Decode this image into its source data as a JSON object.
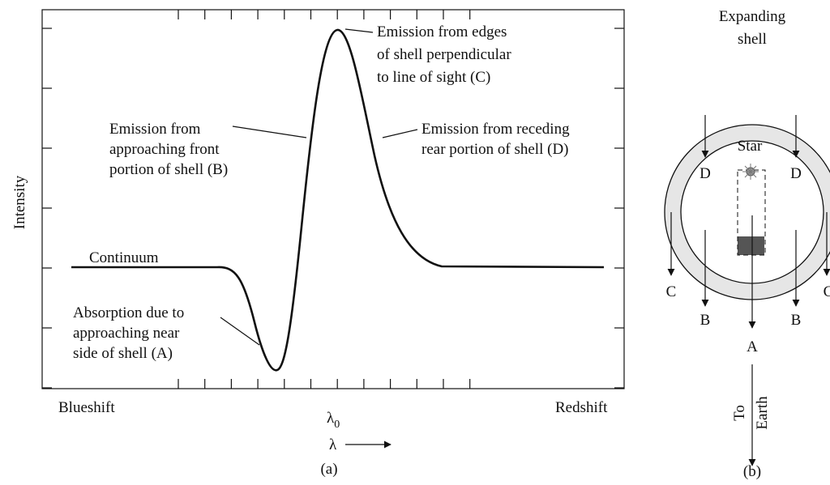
{
  "panel_a": {
    "y_axis_label": "Intensity",
    "continuum": "Continuum",
    "absorption_a": [
      "Absorption due to",
      "approaching near",
      "side of shell (A)"
    ],
    "emission_b": [
      "Emission from",
      "approaching front",
      "portion of shell (B)"
    ],
    "emission_c": [
      "Emission from edges",
      "of shell perpendicular",
      "to line of sight (C)"
    ],
    "emission_d": [
      "Emission from receding",
      "rear portion of shell (D)"
    ],
    "blueshift": "Blueshift",
    "redshift": "Redshift",
    "rest_wavelength": {
      "symbol": "λ",
      "subscript": "0"
    },
    "x_axis_label": "λ",
    "caption": "(a)"
  },
  "panel_b": {
    "title": [
      "Expanding",
      "shell"
    ],
    "star": "Star",
    "labels": {
      "d_left": "D",
      "d_right": "D",
      "c_left": "C",
      "c_right": "C",
      "b_left": "B",
      "b_right": "B",
      "a": "A"
    },
    "to_earth": [
      "To",
      "Earth"
    ],
    "caption": "(b)"
  }
}
